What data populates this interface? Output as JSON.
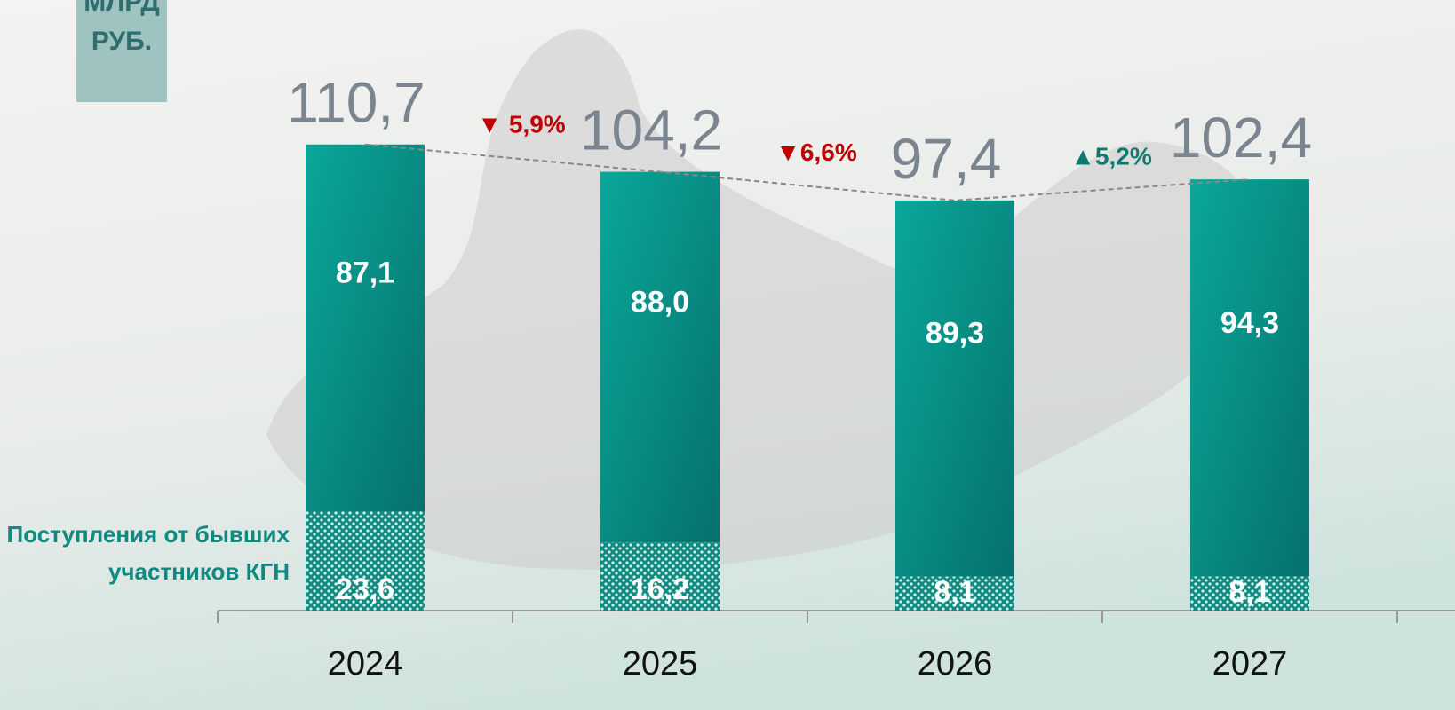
{
  "chart_data": {
    "type": "stacked_bar",
    "unit_lines": [
      "МЛРД",
      "РУБ."
    ],
    "categories": [
      "2024",
      "2025",
      "2026",
      "2027"
    ],
    "series": [
      {
        "name": "Поступления от бывших участников КГН",
        "color": "#0e8a80",
        "values": [
          23.6,
          16.2,
          8.1,
          8.1
        ],
        "value_labels": [
          "23,6",
          "16,2",
          "8,1",
          "8,1"
        ]
      },
      {
        "color": "#089488",
        "values": [
          87.1,
          88,
          89.3,
          94.3
        ],
        "value_labels": [
          "87,1",
          "88,0",
          "89,3",
          "94,3"
        ]
      }
    ],
    "totals": {
      "values": [
        110.7,
        104.2,
        97.4,
        102.4
      ],
      "value_labels": [
        "110,7",
        "104,2",
        "97,4",
        "102,4"
      ]
    },
    "changes": {
      "values": [
        -5.9,
        -6.6,
        5.2
      ],
      "value_labels": [
        "▼ 5,9%",
        "▼6,6%",
        "▲5,2%"
      ]
    },
    "ylim": [
      0,
      145
    ]
  }
}
